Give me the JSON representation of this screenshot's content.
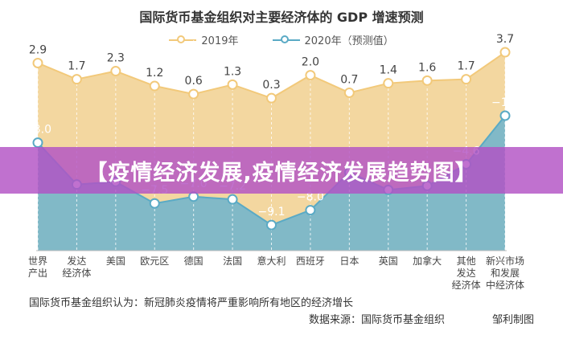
{
  "chart_data": {
    "type": "area",
    "title": "国际货币基金组织对主要经济体的 GDP 增速预测",
    "categories": [
      [
        "世界",
        "产出"
      ],
      [
        "发达",
        "经济体"
      ],
      [
        "美国"
      ],
      [
        "欧元区"
      ],
      [
        "德国"
      ],
      [
        "法国"
      ],
      [
        "意大利"
      ],
      [
        "西班牙"
      ],
      [
        "日本"
      ],
      [
        "英国"
      ],
      [
        "加拿大"
      ],
      [
        "其他",
        "发达",
        "经济体"
      ],
      [
        "新兴市场",
        "和发展",
        "中经济体"
      ]
    ],
    "series": [
      {
        "name": "2019年",
        "color": "#f2d396",
        "stroke": "#f2c97a",
        "values": [
          2.9,
          1.7,
          2.3,
          1.2,
          0.6,
          1.3,
          0.3,
          2.0,
          0.7,
          1.4,
          1.6,
          1.7,
          3.7
        ],
        "labels": [
          "2.9",
          "1.7",
          "2.3",
          "1.2",
          "0.6",
          "1.3",
          "0.3",
          "2.0",
          "0.7",
          "1.4",
          "1.6",
          "1.7",
          "3.7"
        ]
      },
      {
        "name": "2020年（预测值）",
        "color": "#7ab7c9",
        "stroke": "#5aaac5",
        "values": [
          -3.0,
          -6.1,
          -5.9,
          -7.5,
          -7.0,
          -7.2,
          -9.1,
          -8.0,
          -5.2,
          -6.5,
          -6.2,
          -4.6,
          -1.0
        ],
        "labels": [
          "−3.0",
          "",
          "",
          "−7.5",
          "−7.0",
          "−7.2",
          "−9.1",
          "−8.0",
          "",
          "",
          "",
          "−4.6",
          "−1.0"
        ]
      }
    ],
    "ylim": [
      -11,
      4
    ],
    "grid": false,
    "legend": "top-center"
  },
  "banner": "【疫情经济发展,疫情经济发展趋势图】",
  "note": "国际货币基金组织认为：新冠肺炎疫情将严重影响所有地区的经济增长",
  "source": "数据来源：国际货币基金组织",
  "credit": "邹利制图"
}
